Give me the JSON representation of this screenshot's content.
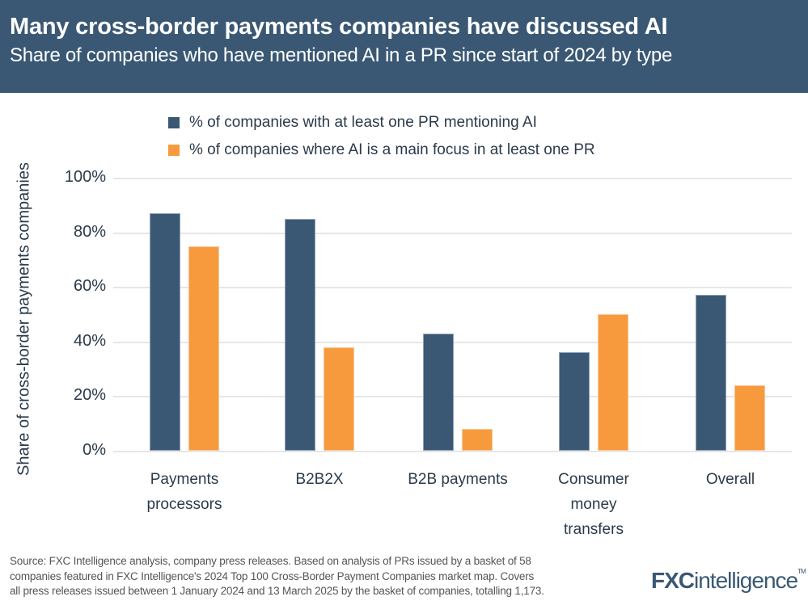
{
  "header": {
    "title": "Many cross-border payments companies have discussed AI",
    "subtitle": "Share of companies who have mentioned AI in a PR since start of 2024 by type"
  },
  "colors": {
    "navy": "#3a5874",
    "orange": "#f79a3e",
    "header_bg": "#3a5874"
  },
  "chart_data": {
    "type": "bar",
    "title": "Many cross-border payments companies have discussed AI",
    "subtitle": "Share of companies who have mentioned AI in a PR since start of 2024 by type",
    "xlabel": "",
    "ylabel": "Share of cross-border payments companies",
    "ylim": [
      0,
      100
    ],
    "yticks": [
      "0%",
      "20%",
      "40%",
      "60%",
      "80%",
      "100%"
    ],
    "grid": true,
    "legend_position": "top",
    "categories": [
      "Payments processors",
      "B2B2X",
      "B2B payments",
      "Consumer money transfers",
      "Overall"
    ],
    "series": [
      {
        "name": "% of companies with at least one PR mentioning AI",
        "color": "#3a5874",
        "values": [
          87,
          85,
          43,
          36,
          57
        ]
      },
      {
        "name": "% of companies where AI is a main focus in at least one PR",
        "color": "#f79a3e",
        "values": [
          75,
          38,
          8,
          50,
          24
        ]
      }
    ]
  },
  "legend": [
    {
      "label": "% of companies with at least one PR mentioning AI"
    },
    {
      "label": "% of companies where AI is a main focus in at least one PR"
    }
  ],
  "axis": {
    "y_title": "Share of cross-border payments companies",
    "ticks": [
      "100%",
      "80%",
      "60%",
      "40%",
      "20%",
      "0%"
    ]
  },
  "categories": [
    {
      "line1": "Payments",
      "line2": "processors",
      "line3": ""
    },
    {
      "line1": "B2B2X",
      "line2": "",
      "line3": ""
    },
    {
      "line1": "B2B payments",
      "line2": "",
      "line3": ""
    },
    {
      "line1": "Consumer",
      "line2": "money",
      "line3": "transfers"
    },
    {
      "line1": "Overall",
      "line2": "",
      "line3": ""
    }
  ],
  "footer": {
    "source_line1": "Source: FXC Intelligence analysis, company press releases. Based on analysis of PRs issued by a basket of 58",
    "source_line2": "companies featured in FXC Intelligence's 2024 Top 100 Cross-Border Payment Companies market map. Covers",
    "source_line3": "all press releases issued between 1 January 2024 and 13 March 2025 by the basket of companies, totalling 1,173.",
    "logo_fxc": "FXC",
    "logo_intelligence": "intelligence",
    "logo_tm": "TM"
  }
}
